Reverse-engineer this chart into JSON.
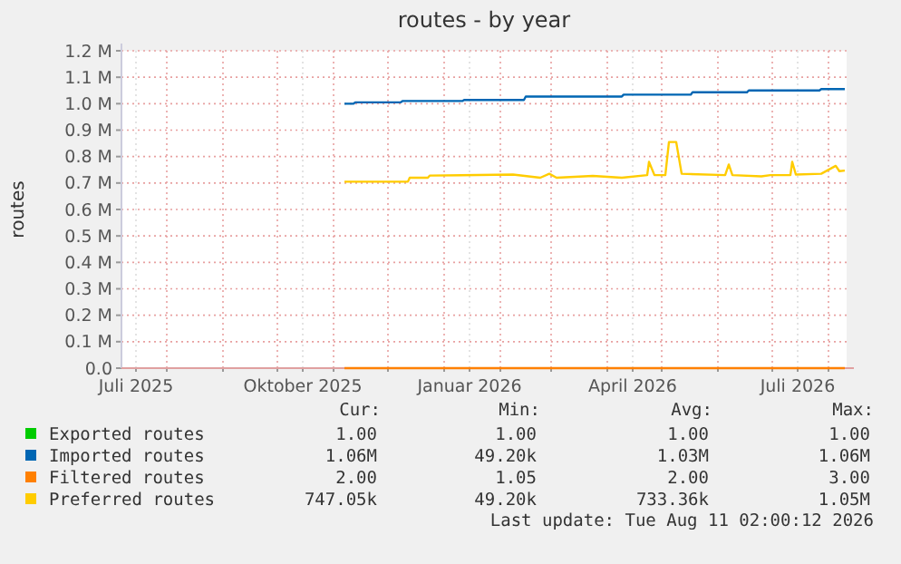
{
  "chart_data": {
    "type": "line",
    "title": "routes - by year",
    "ylabel": "routes",
    "xlim": [
      "2025-07-07",
      "2026-08-11"
    ],
    "xticks": [
      {
        "value": "2025-07-15",
        "label": "Juli 2025"
      },
      {
        "value": "2025-10-15",
        "label": "Oktober 2025"
      },
      {
        "value": "2026-01-15",
        "label": "Januar 2026"
      },
      {
        "value": "2026-04-15",
        "label": "April 2026"
      },
      {
        "value": "2026-07-15",
        "label": "Juli 2026"
      },
      {
        "value": "2025-08-01",
        "label": null
      },
      {
        "value": "2025-09-01",
        "label": null
      },
      {
        "value": "2025-10-01",
        "label": null
      },
      {
        "value": "2025-11-01",
        "label": null
      },
      {
        "value": "2025-12-01",
        "label": null
      },
      {
        "value": "2026-01-01",
        "label": null
      },
      {
        "value": "2026-02-01",
        "label": null
      },
      {
        "value": "2026-03-01",
        "label": null
      },
      {
        "value": "2026-04-01",
        "label": null
      },
      {
        "value": "2026-05-01",
        "label": null
      },
      {
        "value": "2026-06-01",
        "label": null
      },
      {
        "value": "2026-07-01",
        "label": null
      },
      {
        "value": "2026-08-01",
        "label": null
      }
    ],
    "ylim": [
      0,
      1200000
    ],
    "yticks": [
      {
        "value": 0,
        "label": "0.0"
      },
      {
        "value": 100000,
        "label": "0.1 M"
      },
      {
        "value": 200000,
        "label": "0.2 M"
      },
      {
        "value": 300000,
        "label": "0.3 M"
      },
      {
        "value": 400000,
        "label": "0.4 M"
      },
      {
        "value": 500000,
        "label": "0.5 M"
      },
      {
        "value": 600000,
        "label": "0.6 M"
      },
      {
        "value": 700000,
        "label": "0.7 M"
      },
      {
        "value": 800000,
        "label": "0.8 M"
      },
      {
        "value": 900000,
        "label": "0.9 M"
      },
      {
        "value": 1000000,
        "label": "1.0 M"
      },
      {
        "value": 1100000,
        "label": "1.1 M"
      },
      {
        "value": 1200000,
        "label": "1.2 M"
      }
    ],
    "grid": true,
    "legend": "bottom",
    "series": [
      {
        "name": "Exported routes",
        "color": "#00cc00"
      },
      {
        "name": "Imported routes",
        "color": "#0066b3",
        "x": [
          "2025-11-07",
          "2025-11-12",
          "2025-11-13",
          "2025-12-08",
          "2025-12-09",
          "2026-01-11",
          "2026-01-12",
          "2026-02-14",
          "2026-02-15",
          "2026-04-09",
          "2026-04-10",
          "2026-05-17",
          "2026-05-18",
          "2026-06-17",
          "2026-06-18",
          "2026-07-27",
          "2026-07-28",
          "2026-08-10"
        ],
        "values": [
          1000000,
          1000000,
          1005000,
          1005000,
          1010000,
          1010000,
          1014000,
          1014000,
          1027000,
          1027000,
          1034000,
          1034000,
          1043000,
          1043000,
          1050000,
          1050000,
          1055000,
          1055000
        ]
      },
      {
        "name": "Filtered routes",
        "color": "#ff8000",
        "x": [
          "2025-11-07",
          "2026-08-10"
        ],
        "values": [
          0,
          0
        ]
      },
      {
        "name": "Preferred routes",
        "color": "#ffcc00",
        "x": [
          "2025-11-07",
          "2025-12-12",
          "2025-12-13",
          "2025-12-23",
          "2025-12-24",
          "2026-02-08",
          "2026-02-23",
          "2026-02-28",
          "2026-03-04",
          "2026-03-24",
          "2026-04-09",
          "2026-04-23",
          "2026-04-24",
          "2026-04-27",
          "2026-05-03",
          "2026-05-05",
          "2026-05-09",
          "2026-05-12",
          "2026-06-05",
          "2026-06-07",
          "2026-06-09",
          "2026-06-25",
          "2026-06-30",
          "2026-07-11",
          "2026-07-12",
          "2026-07-14",
          "2026-07-28",
          "2026-08-05",
          "2026-08-07",
          "2026-08-10"
        ],
        "values": [
          705000,
          705000,
          720000,
          720000,
          728000,
          732000,
          720000,
          735000,
          720000,
          727000,
          720000,
          730000,
          780000,
          730000,
          730000,
          855000,
          855000,
          735000,
          730000,
          770000,
          730000,
          725000,
          730000,
          730000,
          780000,
          732000,
          735000,
          765000,
          745000,
          747000
        ]
      }
    ],
    "annotations": [
      "Cur:",
      "Min:",
      "Avg:",
      "Max:",
      "1.00",
      "1.00",
      "1.00",
      "1.00",
      "1.06M",
      "49.20k",
      "1.03M",
      "1.06M",
      "2.00",
      "1.05",
      "2.00",
      "3.00",
      "747.05k",
      "49.20k",
      "733.36k",
      "1.05M",
      "Last update: Tue Aug 11 02:00:12 2026"
    ]
  }
}
